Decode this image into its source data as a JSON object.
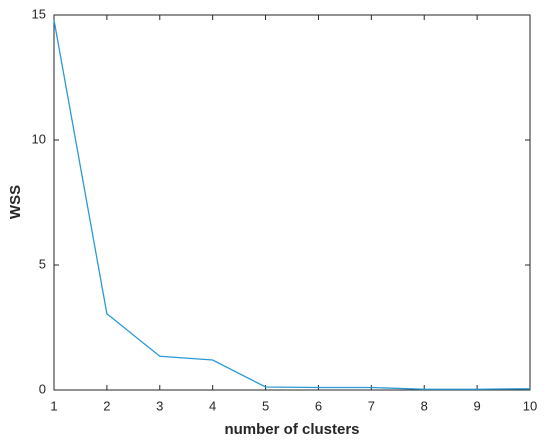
{
  "chart_data": {
    "type": "line",
    "x_label": "number of clusters",
    "y_label": "WSS",
    "x": [
      1,
      2,
      3,
      4,
      5,
      6,
      7,
      8,
      9,
      10
    ],
    "values": [
      14.8,
      3.05,
      1.35,
      1.2,
      0.12,
      0.1,
      0.1,
      0.03,
      0.03,
      0.05
    ],
    "color": "#2a9ad4",
    "xlim": [
      1,
      10
    ],
    "xticks": [
      1,
      2,
      3,
      4,
      5,
      6,
      7,
      8,
      9,
      10
    ],
    "ylim": [
      0,
      15
    ],
    "yticks": [
      0,
      5,
      10,
      15
    ],
    "grid": false
  }
}
